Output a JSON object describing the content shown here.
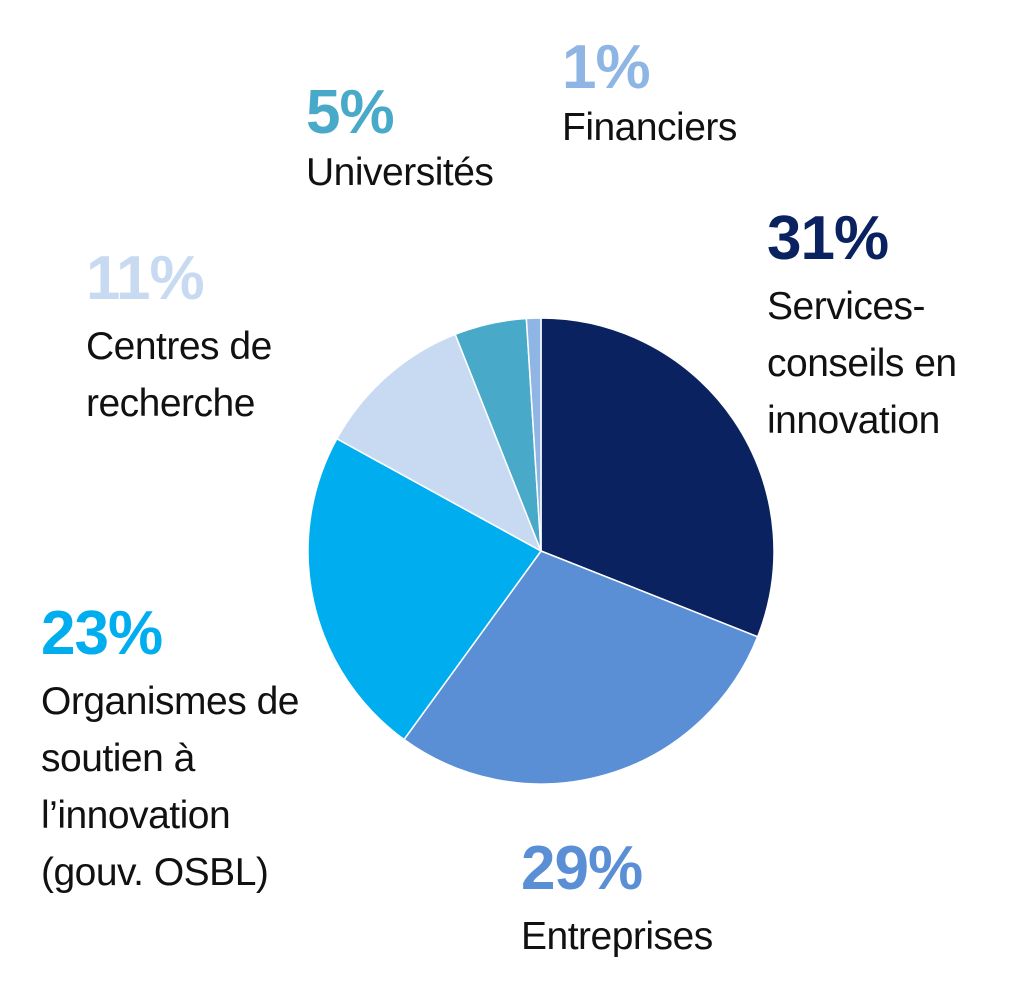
{
  "chart_data": {
    "type": "pie",
    "title": "",
    "slices": [
      {
        "label": "Services-\nconseils en\ninnovation",
        "pct_label": "31%",
        "value": 31,
        "color": "#0b2260"
      },
      {
        "label": "Entreprises",
        "pct_label": "29%",
        "value": 29,
        "color": "#5a8ed5"
      },
      {
        "label": "Organismes de\nsoutien à\nl’innovation\n(gouv. OSBL)",
        "pct_label": "23%",
        "value": 23,
        "color": "#00aeef"
      },
      {
        "label": "Centres de\nrecherche",
        "pct_label": "11%",
        "value": 11,
        "color": "#c8daf1"
      },
      {
        "label": "Universités",
        "pct_label": "5%",
        "value": 5,
        "color": "#48a9c9"
      },
      {
        "label": "Financiers",
        "pct_label": "1%",
        "value": 1,
        "color": "#8fb5e4"
      }
    ],
    "start_angle": "12 o'clock",
    "direction": "clockwise",
    "legend": "none (direct labels)"
  }
}
